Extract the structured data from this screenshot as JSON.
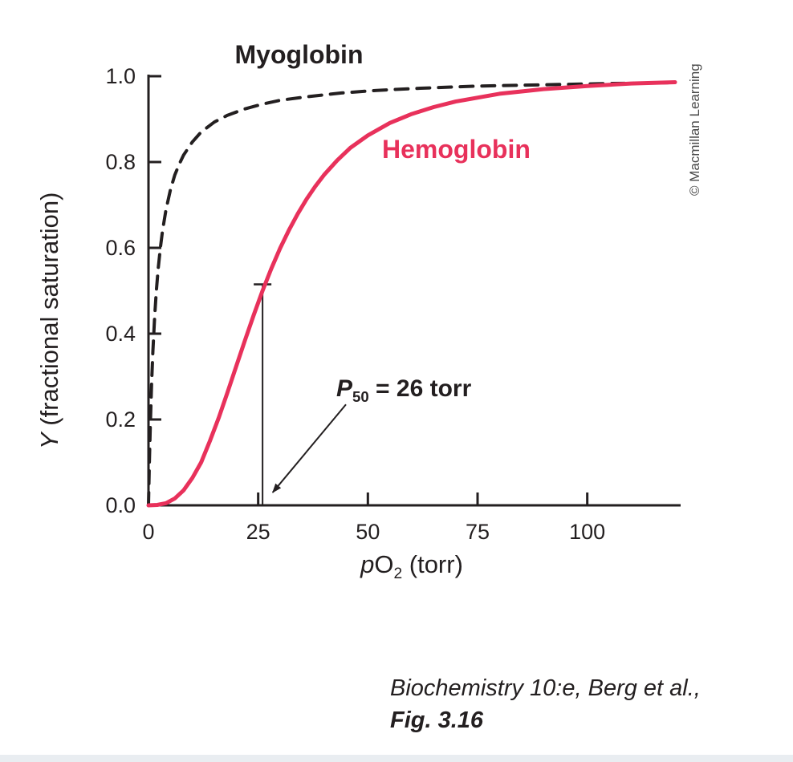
{
  "figure": {
    "myoglobin_label": "Myoglobin",
    "hemoglobin_label": "Hemoglobin",
    "p50": {
      "p": "P",
      "sub": "50",
      "rest": " = 26 torr"
    },
    "y_axis": {
      "symbol": "Y",
      "rest": " (fractional saturation)"
    },
    "x_axis": {
      "p": "p",
      "o": "O",
      "sub": "2",
      "rest": " (torr)"
    },
    "credit": "© Macmillan Learning",
    "caption_line1": "Biochemistry 10:e, Berg et al.,",
    "caption_line2": "Fig. 3.16"
  },
  "chart_data": {
    "type": "line",
    "title": "",
    "xlabel": "pO2 (torr)",
    "ylabel": "Y (fractional saturation)",
    "xlim": [
      0,
      120
    ],
    "ylim": [
      0,
      1.0
    ],
    "xticks": [
      0,
      25,
      50,
      75,
      100
    ],
    "yticks": [
      0.0,
      0.2,
      0.4,
      0.6,
      0.8,
      1.0
    ],
    "grid": false,
    "legend": "inline-labels",
    "axis_color": "#231f20",
    "annotations": {
      "p50_torr": 26,
      "p50_label_text": "P50 = 26 torr",
      "p50_line_top": 0.515,
      "arrow_from": [
        45,
        0.235
      ],
      "arrow_to": [
        28.3,
        0.03
      ]
    },
    "series": [
      {
        "name": "Myoglobin",
        "style": "dashed",
        "color": "#231f20",
        "stroke_width": 4,
        "points": [
          [
            0,
            0
          ],
          [
            0.2,
            0.1
          ],
          [
            0.4,
            0.18
          ],
          [
            0.7,
            0.28
          ],
          [
            1,
            0.36
          ],
          [
            1.4,
            0.44
          ],
          [
            1.8,
            0.5
          ],
          [
            2.2,
            0.55
          ],
          [
            2.7,
            0.6
          ],
          [
            3.2,
            0.64
          ],
          [
            4,
            0.69
          ],
          [
            5,
            0.735
          ],
          [
            6,
            0.77
          ],
          [
            7,
            0.795
          ],
          [
            8,
            0.816
          ],
          [
            10,
            0.847
          ],
          [
            12,
            0.87
          ],
          [
            15,
            0.893
          ],
          [
            18,
            0.909
          ],
          [
            22,
            0.924
          ],
          [
            26,
            0.935
          ],
          [
            30,
            0.944
          ],
          [
            36,
            0.952
          ],
          [
            44,
            0.961
          ],
          [
            52,
            0.967
          ],
          [
            62,
            0.972
          ],
          [
            75,
            0.977
          ],
          [
            90,
            0.98
          ],
          [
            105,
            0.983
          ],
          [
            120,
            0.985
          ]
        ]
      },
      {
        "name": "Hemoglobin",
        "style": "solid",
        "color": "#e8315b",
        "stroke_width": 5,
        "points": [
          [
            0,
            0
          ],
          [
            2,
            0.001
          ],
          [
            4,
            0.005
          ],
          [
            6,
            0.016
          ],
          [
            8,
            0.035
          ],
          [
            10,
            0.064
          ],
          [
            12,
            0.1
          ],
          [
            14,
            0.15
          ],
          [
            16,
            0.204
          ],
          [
            18,
            0.263
          ],
          [
            20,
            0.324
          ],
          [
            22,
            0.385
          ],
          [
            24,
            0.444
          ],
          [
            26,
            0.5
          ],
          [
            28,
            0.552
          ],
          [
            30,
            0.599
          ],
          [
            32,
            0.641
          ],
          [
            34,
            0.679
          ],
          [
            36,
            0.713
          ],
          [
            38,
            0.743
          ],
          [
            40,
            0.77
          ],
          [
            43,
            0.804
          ],
          [
            46,
            0.833
          ],
          [
            50,
            0.862
          ],
          [
            55,
            0.891
          ],
          [
            60,
            0.912
          ],
          [
            65,
            0.928
          ],
          [
            70,
            0.941
          ],
          [
            80,
            0.959
          ],
          [
            90,
            0.97
          ],
          [
            100,
            0.977
          ],
          [
            110,
            0.983
          ],
          [
            120,
            0.986
          ]
        ]
      }
    ]
  }
}
